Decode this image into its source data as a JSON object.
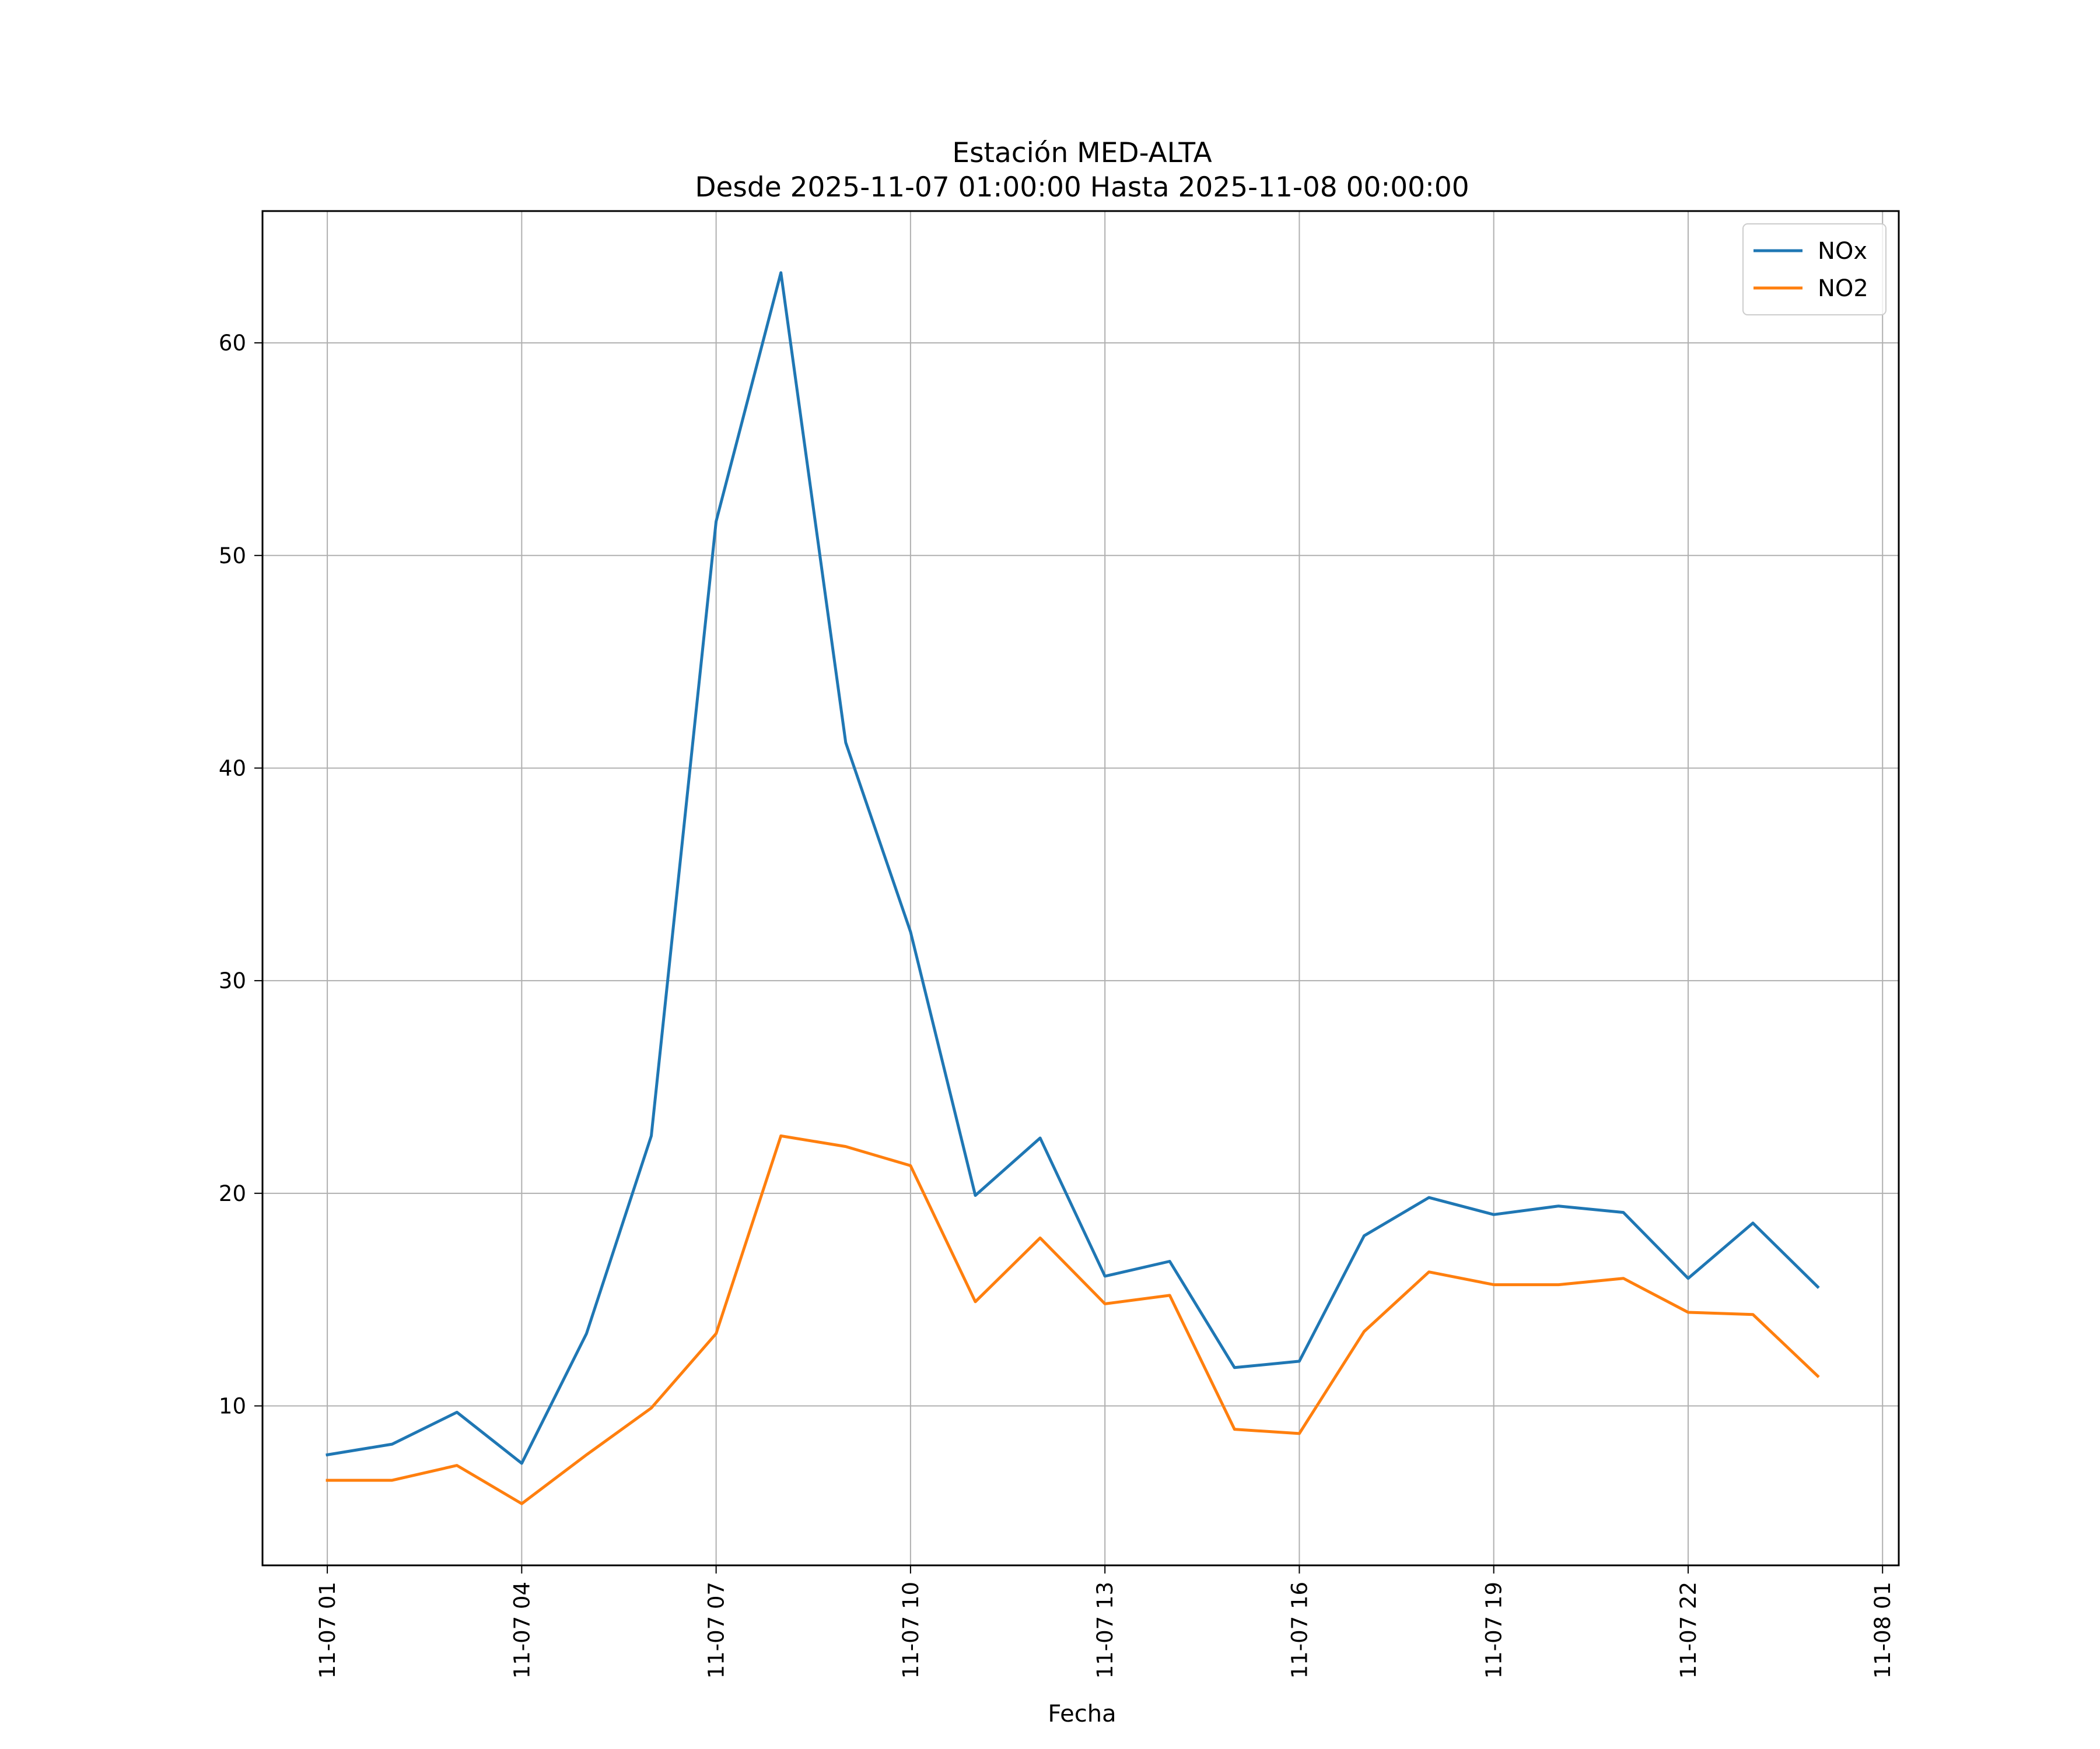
{
  "chart_data": {
    "type": "line",
    "title": "Estación MED-ALTA",
    "subtitle": "Desde 2025-11-07 01:00:00 Hasta 2025-11-08 00:00:00",
    "xlabel": "Fecha",
    "ylabel": "",
    "x": [
      "2025-11-07 01:00",
      "2025-11-07 02:00",
      "2025-11-07 03:00",
      "2025-11-07 04:00",
      "2025-11-07 05:00",
      "2025-11-07 06:00",
      "2025-11-07 07:00",
      "2025-11-07 08:00",
      "2025-11-07 09:00",
      "2025-11-07 10:00",
      "2025-11-07 11:00",
      "2025-11-07 12:00",
      "2025-11-07 13:00",
      "2025-11-07 14:00",
      "2025-11-07 15:00",
      "2025-11-07 16:00",
      "2025-11-07 17:00",
      "2025-11-07 18:00",
      "2025-11-07 19:00",
      "2025-11-07 20:00",
      "2025-11-07 21:00",
      "2025-11-07 22:00",
      "2025-11-07 23:00",
      "2025-11-08 00:00"
    ],
    "series": [
      {
        "name": "NOx",
        "color": "#1f77b4",
        "values": [
          7.7,
          8.2,
          9.7,
          7.3,
          13.4,
          22.7,
          51.6,
          63.3,
          41.2,
          32.3,
          19.9,
          22.6,
          16.1,
          16.8,
          11.8,
          12.1,
          18.0,
          19.8,
          19.0,
          19.4,
          19.1,
          16.0,
          18.6,
          15.6
        ]
      },
      {
        "name": "NO2",
        "color": "#ff7f0e",
        "values": [
          6.5,
          6.5,
          7.2,
          5.4,
          7.7,
          9.9,
          13.4,
          22.7,
          22.2,
          21.3,
          14.9,
          17.9,
          14.8,
          15.2,
          8.9,
          8.7,
          13.5,
          16.3,
          15.7,
          15.7,
          16.0,
          14.4,
          14.3,
          11.4
        ]
      }
    ],
    "xlim": [
      "2025-11-07 00:00",
      "2025-11-08 01:15"
    ],
    "ylim": [
      2.5,
      66.2
    ],
    "xticks": [
      "2025-11-07 01:00",
      "2025-11-07 04:00",
      "2025-11-07 07:00",
      "2025-11-07 10:00",
      "2025-11-07 13:00",
      "2025-11-07 16:00",
      "2025-11-07 19:00",
      "2025-11-07 22:00",
      "2025-11-08 01:00"
    ],
    "xtick_labels": [
      "11-07 01",
      "11-07 04",
      "11-07 07",
      "11-07 10",
      "11-07 13",
      "11-07 16",
      "11-07 19",
      "11-07 22",
      "11-08 01"
    ],
    "yticks": [
      10,
      20,
      30,
      40,
      50,
      60
    ],
    "ytick_labels": [
      "10",
      "20",
      "30",
      "40",
      "50",
      "60"
    ],
    "grid": true,
    "legend_position": "top-right"
  }
}
